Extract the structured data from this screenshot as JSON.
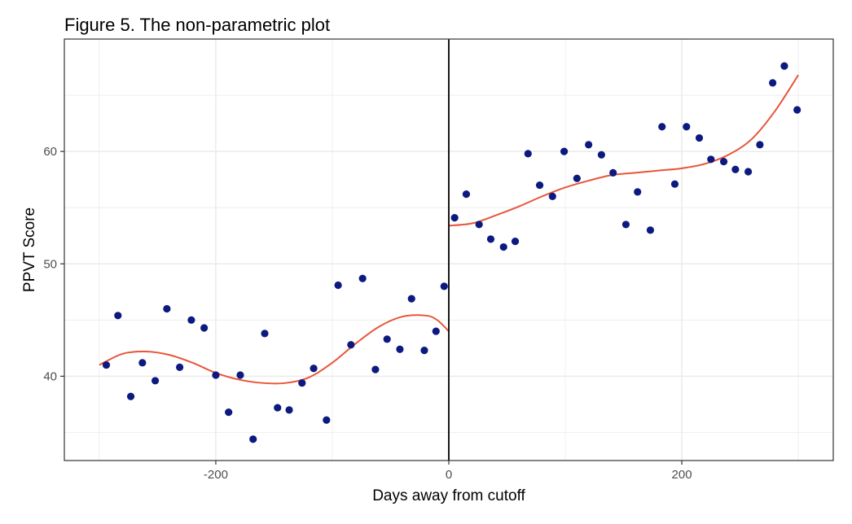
{
  "chart_data": {
    "type": "scatter",
    "title": "Figure 5. The non-parametric plot",
    "xlabel": "Days away from cutoff",
    "ylabel": "PPVT Score",
    "xlim": [
      -330,
      330
    ],
    "ylim": [
      32.5,
      70
    ],
    "x_ticks": [
      -200,
      0,
      200
    ],
    "x_tick_labels": [
      "-200",
      "0",
      "200"
    ],
    "y_ticks": [
      40,
      50,
      60
    ],
    "y_tick_labels": [
      "40",
      "50",
      "60"
    ],
    "grid": true,
    "cutoff_line_x": 0,
    "colors": {
      "points": "#0c1a80",
      "fit": "#e8553a",
      "cutoff": "#000000",
      "grid": "#ebebeb",
      "panel_border": "#333333"
    },
    "points": [
      {
        "x": -294,
        "y": 41.0
      },
      {
        "x": -284,
        "y": 45.4
      },
      {
        "x": -273,
        "y": 38.2
      },
      {
        "x": -263,
        "y": 41.2
      },
      {
        "x": -252,
        "y": 39.6
      },
      {
        "x": -242,
        "y": 46.0
      },
      {
        "x": -231,
        "y": 40.8
      },
      {
        "x": -221,
        "y": 45.0
      },
      {
        "x": -210,
        "y": 44.3
      },
      {
        "x": -200,
        "y": 40.1
      },
      {
        "x": -189,
        "y": 36.8
      },
      {
        "x": -179,
        "y": 40.1
      },
      {
        "x": -168,
        "y": 34.4
      },
      {
        "x": -158,
        "y": 43.8
      },
      {
        "x": -147,
        "y": 37.2
      },
      {
        "x": -137,
        "y": 37.0
      },
      {
        "x": -126,
        "y": 39.4
      },
      {
        "x": -116,
        "y": 40.7
      },
      {
        "x": -105,
        "y": 36.1
      },
      {
        "x": -95,
        "y": 48.1
      },
      {
        "x": -84,
        "y": 42.8
      },
      {
        "x": -74,
        "y": 48.7
      },
      {
        "x": -63,
        "y": 40.6
      },
      {
        "x": -53,
        "y": 43.3
      },
      {
        "x": -42,
        "y": 42.4
      },
      {
        "x": -32,
        "y": 46.9
      },
      {
        "x": -21,
        "y": 42.3
      },
      {
        "x": -11,
        "y": 44.0
      },
      {
        "x": -4,
        "y": 48.0
      },
      {
        "x": 5,
        "y": 54.1
      },
      {
        "x": 15,
        "y": 56.2
      },
      {
        "x": 26,
        "y": 53.5
      },
      {
        "x": 36,
        "y": 52.2
      },
      {
        "x": 47,
        "y": 51.5
      },
      {
        "x": 57,
        "y": 52.0
      },
      {
        "x": 68,
        "y": 59.8
      },
      {
        "x": 78,
        "y": 57.0
      },
      {
        "x": 89,
        "y": 56.0
      },
      {
        "x": 99,
        "y": 60.0
      },
      {
        "x": 110,
        "y": 57.6
      },
      {
        "x": 120,
        "y": 60.6
      },
      {
        "x": 131,
        "y": 59.7
      },
      {
        "x": 141,
        "y": 58.1
      },
      {
        "x": 152,
        "y": 53.5
      },
      {
        "x": 162,
        "y": 56.4
      },
      {
        "x": 173,
        "y": 53.0
      },
      {
        "x": 183,
        "y": 62.2
      },
      {
        "x": 194,
        "y": 57.1
      },
      {
        "x": 204,
        "y": 62.2
      },
      {
        "x": 215,
        "y": 61.2
      },
      {
        "x": 225,
        "y": 59.3
      },
      {
        "x": 236,
        "y": 59.1
      },
      {
        "x": 246,
        "y": 58.4
      },
      {
        "x": 257,
        "y": 58.2
      },
      {
        "x": 267,
        "y": 60.6
      },
      {
        "x": 278,
        "y": 66.1
      },
      {
        "x": 288,
        "y": 67.6
      },
      {
        "x": 299,
        "y": 63.7
      }
    ],
    "fit_left": [
      {
        "x": -300,
        "y": 41.0
      },
      {
        "x": -280,
        "y": 42.0
      },
      {
        "x": -260,
        "y": 42.2
      },
      {
        "x": -240,
        "y": 41.9
      },
      {
        "x": -220,
        "y": 41.2
      },
      {
        "x": -200,
        "y": 40.3
      },
      {
        "x": -180,
        "y": 39.7
      },
      {
        "x": -160,
        "y": 39.4
      },
      {
        "x": -140,
        "y": 39.4
      },
      {
        "x": -120,
        "y": 39.9
      },
      {
        "x": -100,
        "y": 41.2
      },
      {
        "x": -80,
        "y": 42.9
      },
      {
        "x": -60,
        "y": 44.4
      },
      {
        "x": -40,
        "y": 45.3
      },
      {
        "x": -20,
        "y": 45.4
      },
      {
        "x": -10,
        "y": 45.0
      },
      {
        "x": 0,
        "y": 44.0
      }
    ],
    "fit_right": [
      {
        "x": 0,
        "y": 53.4
      },
      {
        "x": 20,
        "y": 53.6
      },
      {
        "x": 40,
        "y": 54.3
      },
      {
        "x": 60,
        "y": 55.1
      },
      {
        "x": 80,
        "y": 56.0
      },
      {
        "x": 100,
        "y": 56.8
      },
      {
        "x": 120,
        "y": 57.4
      },
      {
        "x": 140,
        "y": 57.9
      },
      {
        "x": 160,
        "y": 58.1
      },
      {
        "x": 180,
        "y": 58.3
      },
      {
        "x": 200,
        "y": 58.5
      },
      {
        "x": 220,
        "y": 58.9
      },
      {
        "x": 240,
        "y": 59.7
      },
      {
        "x": 260,
        "y": 61.1
      },
      {
        "x": 280,
        "y": 63.6
      },
      {
        "x": 300,
        "y": 66.8
      }
    ]
  }
}
